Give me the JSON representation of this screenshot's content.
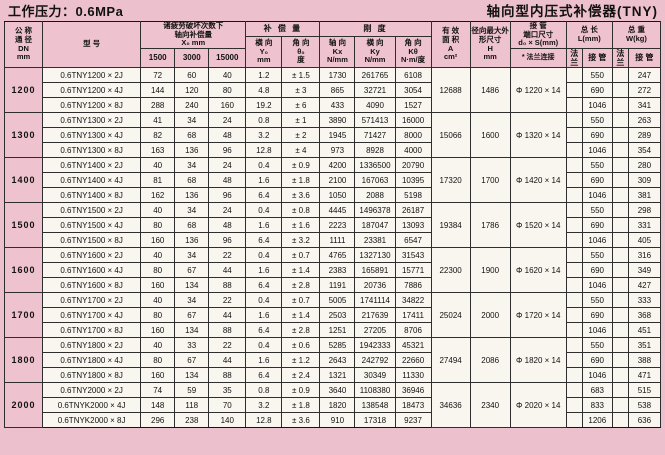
{
  "page": {
    "pressure_label": "工作压力：0.6MPa",
    "product_title": "轴向型内压式补偿器(TNY)"
  },
  "header": {
    "dn": "公 称\n通 径\nDN\nmm",
    "model": "型  号",
    "fatigue_group": "诸疲劳破坏次数下\n轴向补偿量\nX₀   mm",
    "fatigue_cols": [
      "1500",
      "3000",
      "15000"
    ],
    "compensation_group": "补 偿 量",
    "lateral": "横 向\nY₀\nmm",
    "angular": "角 向\nθ₀\n度",
    "stiffness_group": "刚  度",
    "axial_k": "轴 向\nKx\nN/mm",
    "lateral_k": "横 向\nKy\nN/mm",
    "angular_k": "角 向\nKθ\nN·m/度",
    "area": "有 效\n面 积\nA\ncm²",
    "h": "径向最大外\n形尺寸\nH\nmm",
    "pipe_end": "接  管\n端口尺寸\nd₀ × S(mm)",
    "flange_conn": "* 法兰连接",
    "length_group": "总  长\nL(mm)",
    "weight_group": "总  重\nW(kg)",
    "flange": "法 兰",
    "pipe": "接 管"
  },
  "groups": [
    {
      "dn": "1200",
      "area": "12688",
      "h": "1486",
      "d": "Φ 1220 × 14",
      "rows": [
        {
          "model": "0.6TNY1200 × 2J",
          "x": [
            "72",
            "60",
            "40"
          ],
          "y0": "1.2",
          "theta": "± 1.5",
          "kx": "1730",
          "ky": "261765",
          "kt": "6108",
          "l": "550",
          "w": "247"
        },
        {
          "model": "0.6TNY1200 × 4J",
          "x": [
            "144",
            "120",
            "80"
          ],
          "y0": "4.8",
          "theta": "± 3",
          "kx": "865",
          "ky": "32721",
          "kt": "3054",
          "l": "690",
          "w": "272"
        },
        {
          "model": "0.6TNY1200 × 8J",
          "x": [
            "288",
            "240",
            "160"
          ],
          "y0": "19.2",
          "theta": "± 6",
          "kx": "433",
          "ky": "4090",
          "kt": "1527",
          "l": "1046",
          "w": "341"
        }
      ]
    },
    {
      "dn": "1300",
      "area": "15066",
      "h": "1600",
      "d": "Φ 1320 × 14",
      "rows": [
        {
          "model": "0.6TNY1300 × 2J",
          "x": [
            "41",
            "34",
            "24"
          ],
          "y0": "0.8",
          "theta": "± 1",
          "kx": "3890",
          "ky": "571413",
          "kt": "16000",
          "l": "550",
          "w": "263"
        },
        {
          "model": "0.6TNY1300 × 4J",
          "x": [
            "82",
            "68",
            "48"
          ],
          "y0": "3.2",
          "theta": "± 2",
          "kx": "1945",
          "ky": "71427",
          "kt": "8000",
          "l": "690",
          "w": "289"
        },
        {
          "model": "0.6TNY1300 × 8J",
          "x": [
            "163",
            "136",
            "96"
          ],
          "y0": "12.8",
          "theta": "± 4",
          "kx": "973",
          "ky": "8928",
          "kt": "4000",
          "l": "1046",
          "w": "354"
        }
      ]
    },
    {
      "dn": "1400",
      "area": "17320",
      "h": "1700",
      "d": "Φ 1420 × 14",
      "rows": [
        {
          "model": "0.6TNY1400 × 2J",
          "x": [
            "40",
            "34",
            "24"
          ],
          "y0": "0.4",
          "theta": "± 0.9",
          "kx": "4200",
          "ky": "1336500",
          "kt": "20790",
          "l": "550",
          "w": "280"
        },
        {
          "model": "0.6TNY1400 × 4J",
          "x": [
            "81",
            "68",
            "48"
          ],
          "y0": "1.6",
          "theta": "± 1.8",
          "kx": "2100",
          "ky": "167063",
          "kt": "10395",
          "l": "690",
          "w": "309"
        },
        {
          "model": "0.6TNY1400 × 8J",
          "x": [
            "162",
            "136",
            "96"
          ],
          "y0": "6.4",
          "theta": "± 3.6",
          "kx": "1050",
          "ky": "2088",
          "kt": "5198",
          "l": "1046",
          "w": "381"
        }
      ]
    },
    {
      "dn": "1500",
      "area": "19384",
      "h": "1786",
      "d": "Φ 1520 × 14",
      "rows": [
        {
          "model": "0.6TNY1500 × 2J",
          "x": [
            "40",
            "34",
            "24"
          ],
          "y0": "0.4",
          "theta": "± 0.8",
          "kx": "4445",
          "ky": "1496378",
          "kt": "26187",
          "l": "550",
          "w": "298"
        },
        {
          "model": "0.6TNY1500 × 4J",
          "x": [
            "80",
            "68",
            "48"
          ],
          "y0": "1.6",
          "theta": "± 1.6",
          "kx": "2223",
          "ky": "187047",
          "kt": "13093",
          "l": "690",
          "w": "331"
        },
        {
          "model": "0.6TNY1500 × 8J",
          "x": [
            "160",
            "136",
            "96"
          ],
          "y0": "6.4",
          "theta": "± 3.2",
          "kx": "1111",
          "ky": "23381",
          "kt": "6547",
          "l": "1046",
          "w": "405"
        }
      ]
    },
    {
      "dn": "1600",
      "area": "22300",
      "h": "1900",
      "d": "Φ 1620 × 14",
      "rows": [
        {
          "model": "0.6TNY1600 × 2J",
          "x": [
            "40",
            "34",
            "22"
          ],
          "y0": "0.4",
          "theta": "± 0.7",
          "kx": "4765",
          "ky": "1327130",
          "kt": "31543",
          "l": "550",
          "w": "316"
        },
        {
          "model": "0.6TNY1600 × 4J",
          "x": [
            "80",
            "67",
            "44"
          ],
          "y0": "1.6",
          "theta": "± 1.4",
          "kx": "2383",
          "ky": "165891",
          "kt": "15771",
          "l": "690",
          "w": "349"
        },
        {
          "model": "0.6TNY1600 × 8J",
          "x": [
            "160",
            "134",
            "88"
          ],
          "y0": "6.4",
          "theta": "± 2.8",
          "kx": "1191",
          "ky": "20736",
          "kt": "7886",
          "l": "1046",
          "w": "427"
        }
      ]
    },
    {
      "dn": "1700",
      "area": "25024",
      "h": "2000",
      "d": "Φ 1720 × 14",
      "rows": [
        {
          "model": "0.6TNY1700 × 2J",
          "x": [
            "40",
            "34",
            "22"
          ],
          "y0": "0.4",
          "theta": "± 0.7",
          "kx": "5005",
          "ky": "1741114",
          "kt": "34822",
          "l": "550",
          "w": "333"
        },
        {
          "model": "0.6TNY1700 × 4J",
          "x": [
            "80",
            "67",
            "44"
          ],
          "y0": "1.6",
          "theta": "± 1.4",
          "kx": "2503",
          "ky": "217639",
          "kt": "17411",
          "l": "690",
          "w": "368"
        },
        {
          "model": "0.6TNY1700 × 8J",
          "x": [
            "160",
            "134",
            "88"
          ],
          "y0": "6.4",
          "theta": "± 2.8",
          "kx": "1251",
          "ky": "27205",
          "kt": "8706",
          "l": "1046",
          "w": "451"
        }
      ]
    },
    {
      "dn": "1800",
      "area": "27494",
      "h": "2086",
      "d": "Φ 1820 × 14",
      "rows": [
        {
          "model": "0.6TNY1800 × 2J",
          "x": [
            "40",
            "33",
            "22"
          ],
          "y0": "0.4",
          "theta": "± 0.6",
          "kx": "5285",
          "ky": "1942333",
          "kt": "45321",
          "l": "550",
          "w": "351"
        },
        {
          "model": "0.6TNY1800 × 4J",
          "x": [
            "80",
            "67",
            "44"
          ],
          "y0": "1.6",
          "theta": "± 1.2",
          "kx": "2643",
          "ky": "242792",
          "kt": "22660",
          "l": "690",
          "w": "388"
        },
        {
          "model": "0.6TNY1800 × 8J",
          "x": [
            "160",
            "134",
            "88"
          ],
          "y0": "6.4",
          "theta": "± 2.4",
          "kx": "1321",
          "ky": "30349",
          "kt": "11330",
          "l": "1046",
          "w": "471"
        }
      ]
    },
    {
      "dn": "2000",
      "area": "34636",
      "h": "2340",
      "d": "Φ 2020 × 14",
      "rows": [
        {
          "model": "0.6TNY2000 × 2J",
          "x": [
            "74",
            "59",
            "35"
          ],
          "y0": "0.8",
          "theta": "± 0.9",
          "kx": "3640",
          "ky": "1108380",
          "kt": "36946",
          "l": "683",
          "w": "515"
        },
        {
          "model": "0.6TNYK2000 × 4J",
          "x": [
            "148",
            "118",
            "70"
          ],
          "y0": "3.2",
          "theta": "± 1.8",
          "kx": "1820",
          "ky": "138548",
          "kt": "18473",
          "l": "833",
          "w": "538"
        },
        {
          "model": "0.6TNYK2000 × 8J",
          "x": [
            "296",
            "238",
            "140"
          ],
          "y0": "12.8",
          "theta": "± 3.6",
          "kx": "910",
          "ky": "17318",
          "kt": "9237",
          "l": "1206",
          "w": "636"
        }
      ]
    }
  ]
}
